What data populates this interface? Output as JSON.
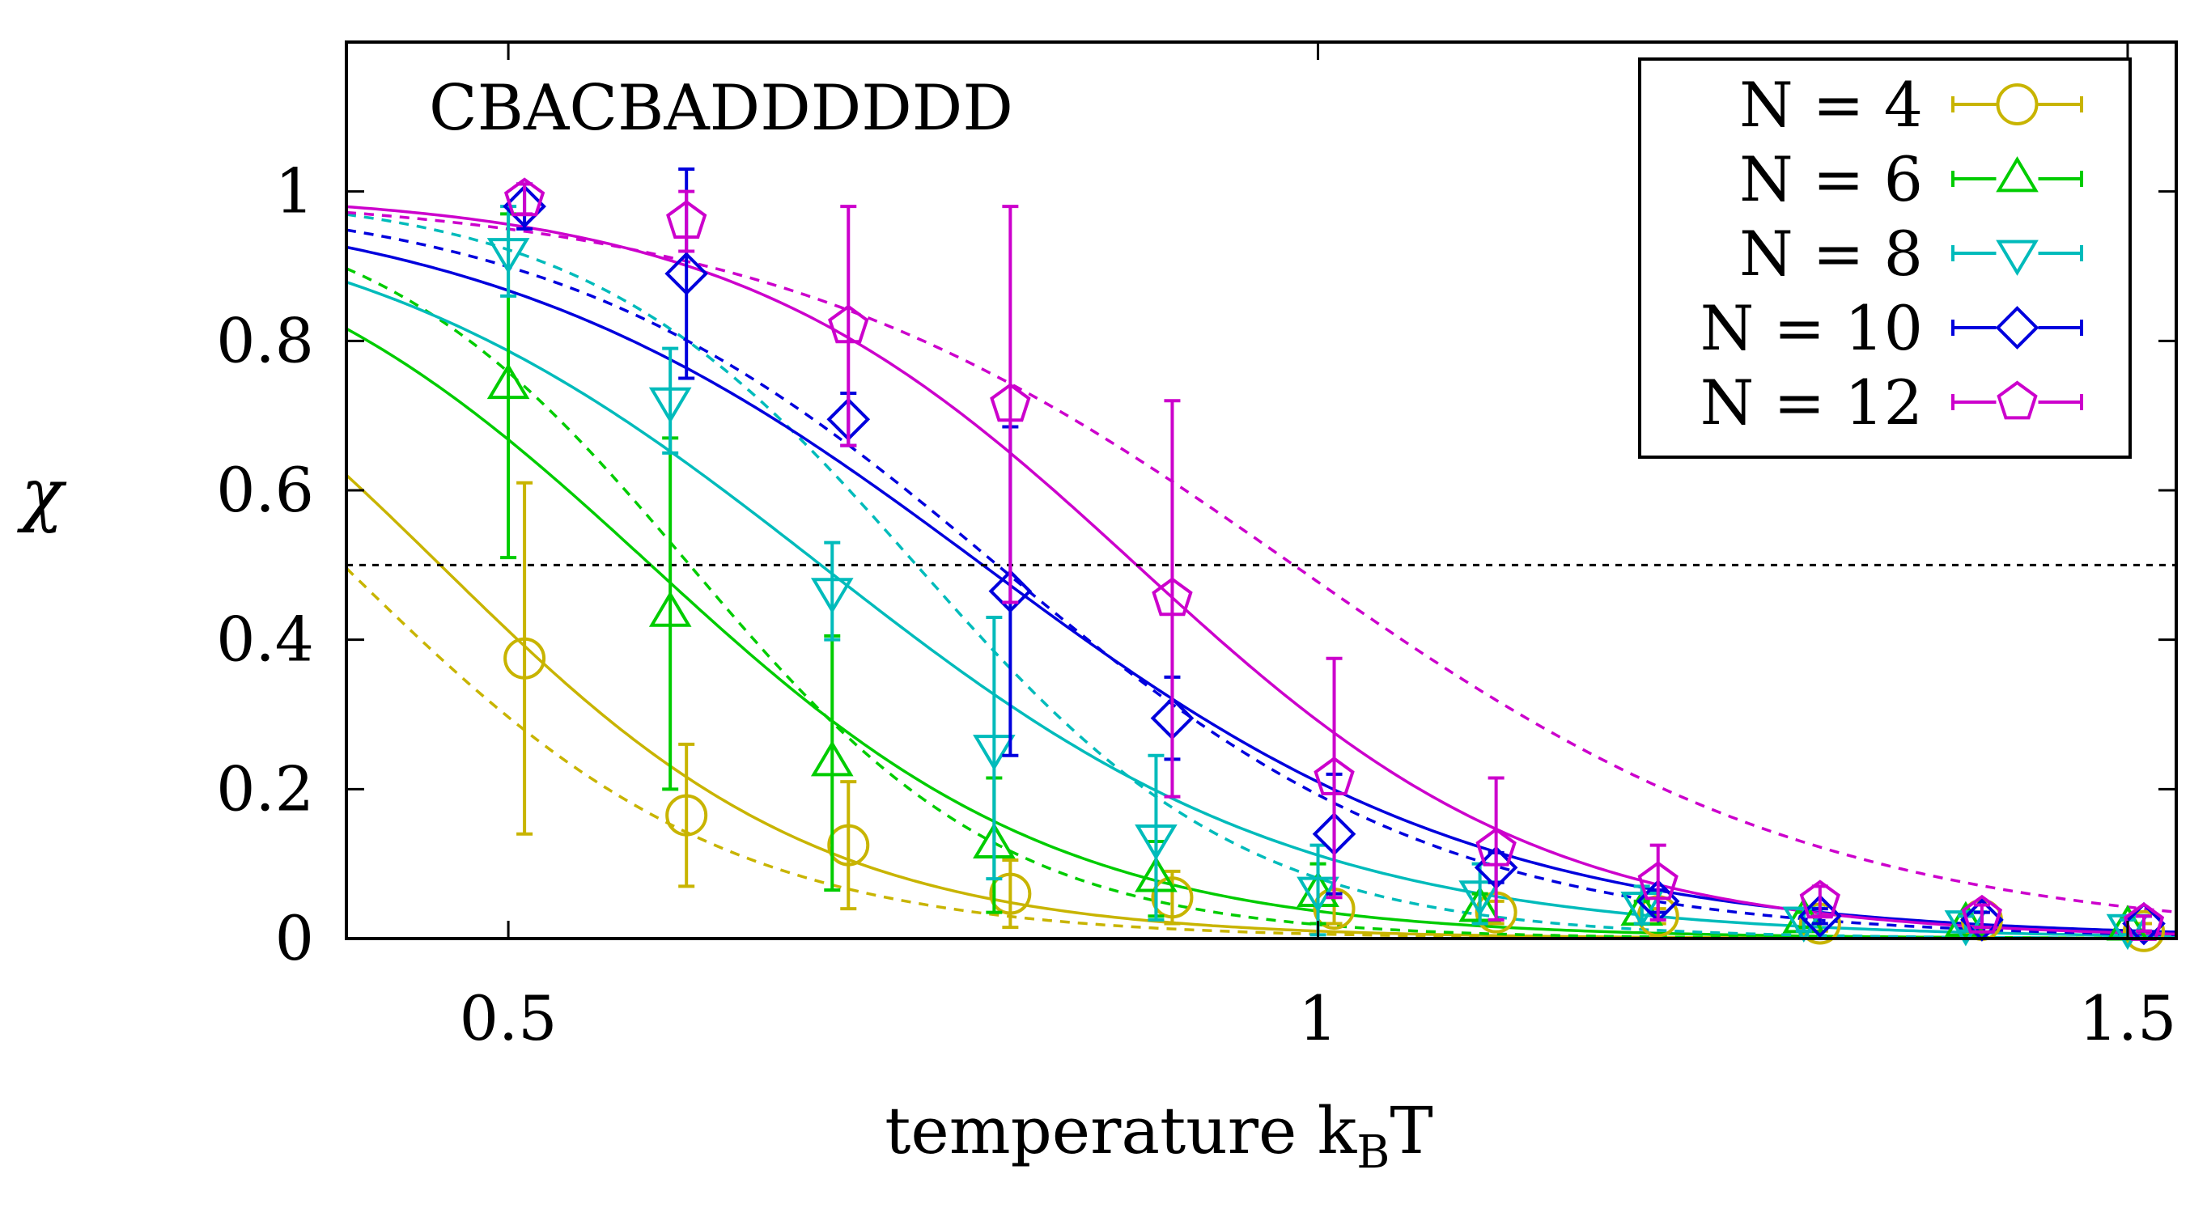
{
  "chart_data": {
    "type": "line",
    "annotation": "CBACBADDDDDD",
    "xlabel": "temperature  k",
    "xlabel_sub": "B",
    "xlabel_suffix": "T",
    "ylabel": "χ",
    "xlim": [
      0.4,
      1.53
    ],
    "ylim": [
      0,
      1.2
    ],
    "xticks": [
      0.5,
      1,
      1.5
    ],
    "xtick_labels": [
      "0.5",
      "1",
      "1.5"
    ],
    "yticks": [
      0,
      0.2,
      0.4,
      0.6,
      0.8,
      1
    ],
    "ytick_labels": [
      "0",
      "0.2",
      "0.4",
      "0.6",
      "0.8",
      "1"
    ],
    "reference_line": 0.5,
    "legend_position": "top-right",
    "series": [
      {
        "name": "N = 4",
        "marker": "circle",
        "color": "#c8b400",
        "x": [
          0.51,
          0.61,
          0.71,
          0.81,
          0.91,
          1.01,
          1.11,
          1.21,
          1.31,
          1.41,
          1.51
        ],
        "y": [
          0.375,
          0.165,
          0.125,
          0.06,
          0.055,
          0.04,
          0.035,
          0.03,
          0.02,
          0.025,
          0.01
        ],
        "err": [
          0.235,
          0.095,
          0.085,
          0.045,
          0.035,
          0.02,
          0.015,
          0.01,
          0.01,
          0.01,
          0.01
        ],
        "fit_solid": {
          "T0": 0.458,
          "w": 0.118
        },
        "fit_dashed": {
          "T0": 0.398,
          "w": 0.118
        }
      },
      {
        "name": "N = 6",
        "marker": "triangle-up",
        "color": "#00cc00",
        "x": [
          0.5,
          0.6,
          0.7,
          0.8,
          0.9,
          1.0,
          1.1,
          1.2,
          1.3,
          1.4,
          1.5
        ],
        "y": [
          0.74,
          0.435,
          0.235,
          0.125,
          0.08,
          0.06,
          0.04,
          0.035,
          0.025,
          0.02,
          0.015
        ],
        "err": [
          0.23,
          0.235,
          0.17,
          0.09,
          0.05,
          0.04,
          0.02,
          0.015,
          0.01,
          0.01,
          0.01
        ],
        "fit_solid": {
          "T0": 0.588,
          "w": 0.126
        },
        "fit_dashed": {
          "T0": 0.612,
          "w": 0.098
        }
      },
      {
        "name": "N = 8",
        "marker": "triangle-down",
        "color": "#00bbbb",
        "x": [
          0.5,
          0.6,
          0.7,
          0.8,
          0.9,
          1.0,
          1.1,
          1.2,
          1.3,
          1.4,
          1.5
        ],
        "y": [
          0.92,
          0.72,
          0.465,
          0.255,
          0.135,
          0.065,
          0.06,
          0.045,
          0.025,
          0.02,
          0.015
        ],
        "err": [
          0.06,
          0.07,
          0.065,
          0.175,
          0.11,
          0.06,
          0.04,
          0.025,
          0.015,
          0.01,
          0.01
        ],
        "fit_solid": {
          "T0": 0.693,
          "w": 0.148
        },
        "fit_dashed": {
          "T0": 0.752,
          "w": 0.102
        }
      },
      {
        "name": "N = 10",
        "marker": "diamond",
        "color": "#0000dd",
        "x": [
          0.51,
          0.61,
          0.71,
          0.81,
          0.91,
          1.01,
          1.11,
          1.21,
          1.31,
          1.41,
          1.51
        ],
        "y": [
          0.98,
          0.89,
          0.695,
          0.465,
          0.295,
          0.14,
          0.095,
          0.05,
          0.03,
          0.025,
          0.02
        ],
        "err": [
          0.03,
          0.14,
          0.035,
          0.22,
          0.055,
          0.08,
          0.02,
          0.015,
          0.01,
          0.01,
          0.01
        ],
        "fit_solid": {
          "T0": 0.793,
          "w": 0.156
        },
        "fit_dashed": {
          "T0": 0.802,
          "w": 0.138
        }
      },
      {
        "name": "N = 12",
        "marker": "pentagon",
        "color": "#cc00cc",
        "x": [
          0.51,
          0.61,
          0.71,
          0.81,
          0.91,
          1.01,
          1.11,
          1.21,
          1.31,
          1.41,
          1.51
        ],
        "y": [
          0.99,
          0.96,
          0.82,
          0.715,
          0.455,
          0.215,
          0.12,
          0.075,
          0.05,
          0.03,
          0.02
        ],
        "err": [
          0.02,
          0.04,
          0.16,
          0.265,
          0.265,
          0.16,
          0.095,
          0.05,
          0.02,
          0.015,
          0.01
        ],
        "fit_solid": {
          "T0": 0.888,
          "w": 0.126
        },
        "fit_dashed": {
          "T0": 0.985,
          "w": 0.165
        }
      }
    ]
  }
}
